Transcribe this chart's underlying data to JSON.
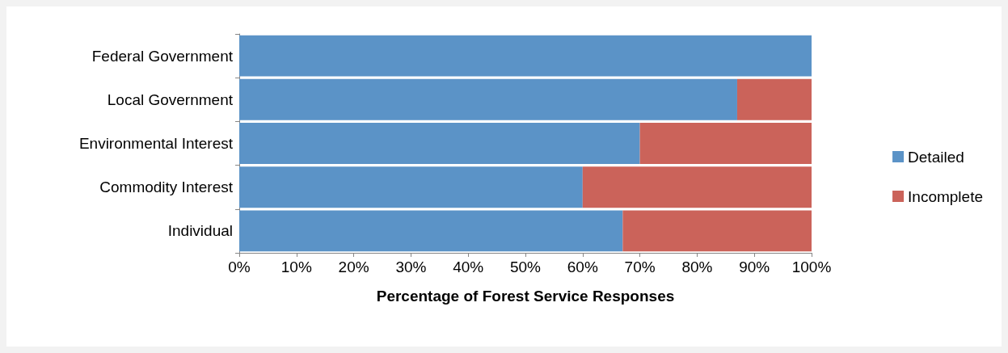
{
  "chart_data": {
    "type": "bar",
    "orientation": "horizontal",
    "stacked": true,
    "xlabel": "Percentage of Forest Service Responses",
    "categories": [
      "Federal Government",
      "Local Government",
      "Environmental Interest",
      "Commodity Interest",
      "Individual"
    ],
    "series": [
      {
        "name": "Detailed",
        "color": "#5b93c7",
        "values": [
          100,
          87,
          70,
          60,
          67
        ]
      },
      {
        "name": "Incomplete",
        "color": "#cb635a",
        "values": [
          0,
          13,
          30,
          40,
          33
        ]
      }
    ],
    "xlim": [
      0,
      100
    ],
    "xticks": [
      {
        "value": 0,
        "label": "0%"
      },
      {
        "value": 10,
        "label": "10%"
      },
      {
        "value": 20,
        "label": "20%"
      },
      {
        "value": 30,
        "label": "30%"
      },
      {
        "value": 40,
        "label": "40%"
      },
      {
        "value": 50,
        "label": "50%"
      },
      {
        "value": 60,
        "label": "60%"
      },
      {
        "value": 70,
        "label": "70%"
      },
      {
        "value": 80,
        "label": "80%"
      },
      {
        "value": 90,
        "label": "90%"
      },
      {
        "value": 100,
        "label": "100%"
      }
    ],
    "grid": false,
    "legend": "right"
  }
}
